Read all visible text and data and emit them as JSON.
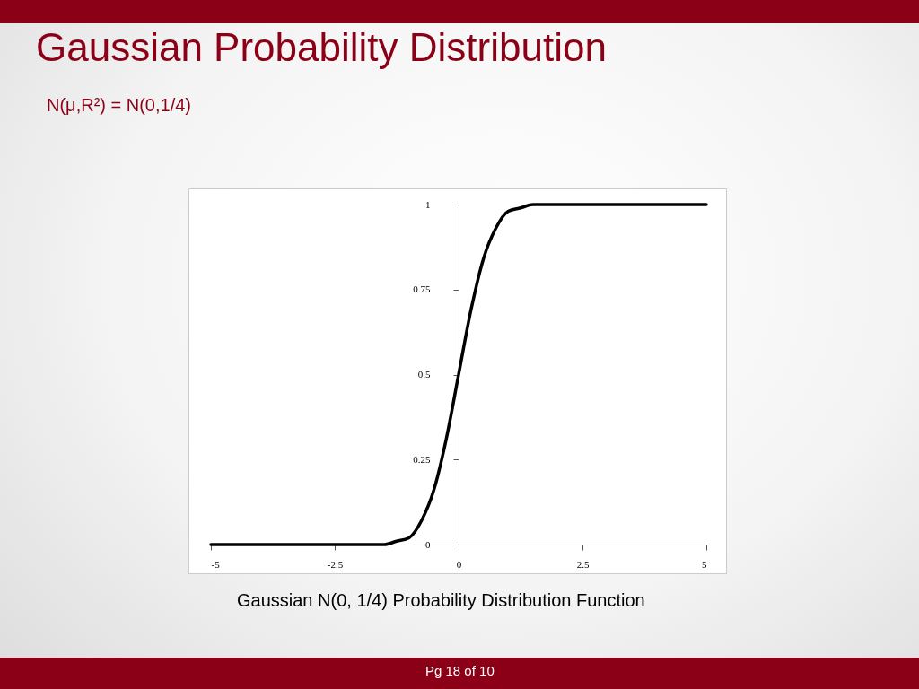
{
  "chart_data": {
    "type": "line",
    "title": "Gaussian Probability Distribution",
    "subtitle": "N(μ,R²) = N(0,1/4)",
    "x": [
      -5,
      -2.5,
      -1.5,
      -1.25,
      -1,
      -0.75,
      -0.5,
      -0.25,
      0,
      0.25,
      0.5,
      0.75,
      1,
      1.25,
      1.5,
      2.5,
      5
    ],
    "series": [
      {
        "color": "#000000",
        "values": [
          0,
          0,
          0,
          0.01,
          0.02,
          0.07,
          0.16,
          0.31,
          0.5,
          0.69,
          0.84,
          0.93,
          0.98,
          0.99,
          1,
          1,
          1
        ]
      }
    ],
    "xlim": [
      -5,
      5
    ],
    "ylim": [
      0,
      1
    ],
    "xticks": [
      -5,
      -2.5,
      0,
      2.5,
      5
    ],
    "yticks": [
      0,
      0.25,
      0.5,
      0.75,
      1
    ],
    "annotations": [
      "Gaussian N(0, 1/4) Probability Distribution Function",
      "Pg 18 of 10"
    ]
  }
}
